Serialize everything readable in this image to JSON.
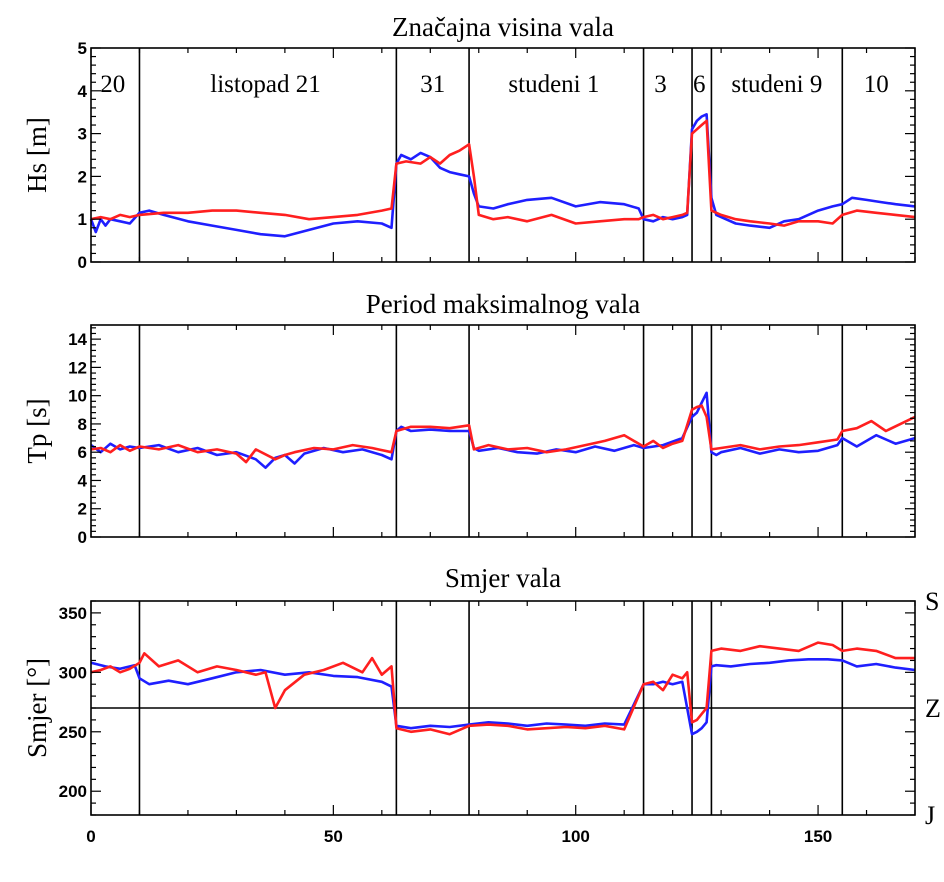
{
  "chart_data": [
    {
      "type": "line",
      "title": "Značajna visina vala",
      "ylabel": "Hs [m]",
      "xlim": [
        0,
        170
      ],
      "ylim": [
        0,
        5
      ],
      "yticks": [
        0,
        1,
        2,
        3,
        4,
        5
      ],
      "ytick_labels": [
        "0",
        "1",
        "2",
        "3",
        "4",
        "5"
      ],
      "day_boundaries_x": [
        10,
        63,
        78,
        114,
        124,
        128,
        155
      ],
      "segment_labels": [
        {
          "x": 4.5,
          "label": "20"
        },
        {
          "x": 36,
          "label": "listopad 21"
        },
        {
          "x": 70.5,
          "label": "31"
        },
        {
          "x": 95.5,
          "label": "studeni 1"
        },
        {
          "x": 117.5,
          "label": "3"
        },
        {
          "x": 125.5,
          "label": "6"
        },
        {
          "x": 141.5,
          "label": "studeni 9"
        },
        {
          "x": 162,
          "label": "10"
        }
      ],
      "series": [
        {
          "color": "#1f1fff",
          "x": [
            0,
            1,
            2,
            3,
            4,
            6,
            8,
            10,
            12,
            15,
            20,
            25,
            30,
            35,
            40,
            45,
            50,
            55,
            60,
            62,
            63,
            64,
            66,
            68,
            70,
            72,
            74,
            76,
            78,
            79,
            80,
            83,
            86,
            90,
            95,
            100,
            105,
            110,
            113,
            114,
            116,
            118,
            120,
            122,
            123,
            124,
            125,
            126,
            127,
            128,
            129,
            130,
            133,
            136,
            140,
            143,
            146,
            150,
            153,
            155,
            157,
            160,
            163,
            166,
            170
          ],
          "y": [
            1.0,
            0.7,
            1.0,
            0.85,
            1.0,
            0.95,
            0.9,
            1.15,
            1.2,
            1.1,
            0.95,
            0.85,
            0.75,
            0.65,
            0.6,
            0.75,
            0.9,
            0.95,
            0.9,
            0.8,
            2.3,
            2.5,
            2.4,
            2.55,
            2.45,
            2.2,
            2.1,
            2.05,
            2.0,
            1.6,
            1.3,
            1.25,
            1.35,
            1.45,
            1.5,
            1.3,
            1.4,
            1.35,
            1.25,
            1.0,
            0.95,
            1.05,
            1.0,
            1.05,
            1.1,
            3.1,
            3.3,
            3.4,
            3.45,
            1.5,
            1.1,
            1.05,
            0.9,
            0.85,
            0.8,
            0.95,
            1.0,
            1.2,
            1.3,
            1.35,
            1.5,
            1.45,
            1.4,
            1.35,
            1.3
          ]
        },
        {
          "color": "#ff1f1f",
          "x": [
            0,
            2,
            4,
            6,
            8,
            10,
            15,
            20,
            25,
            30,
            35,
            40,
            45,
            50,
            55,
            60,
            62,
            63,
            65,
            68,
            70,
            72,
            74,
            76,
            78,
            79,
            80,
            83,
            86,
            90,
            95,
            100,
            105,
            110,
            113,
            114,
            116,
            118,
            120,
            122,
            123,
            124,
            125,
            126,
            127,
            128,
            130,
            133,
            136,
            140,
            143,
            146,
            150,
            153,
            155,
            158,
            162,
            166,
            170
          ],
          "y": [
            1.0,
            1.05,
            1.0,
            1.1,
            1.05,
            1.1,
            1.15,
            1.15,
            1.2,
            1.2,
            1.15,
            1.1,
            1.0,
            1.05,
            1.1,
            1.2,
            1.25,
            2.3,
            2.35,
            2.3,
            2.45,
            2.3,
            2.5,
            2.6,
            2.75,
            2.0,
            1.1,
            1.0,
            1.05,
            0.95,
            1.1,
            0.9,
            0.95,
            1.0,
            1.0,
            1.05,
            1.1,
            1.0,
            1.05,
            1.1,
            1.15,
            3.0,
            3.1,
            3.2,
            3.3,
            1.2,
            1.1,
            1.0,
            0.95,
            0.9,
            0.85,
            0.95,
            0.95,
            0.9,
            1.1,
            1.2,
            1.15,
            1.1,
            1.05
          ]
        }
      ]
    },
    {
      "type": "line",
      "title": "Period maksimalnog vala",
      "ylabel": "Tp [s]",
      "xlim": [
        0,
        170
      ],
      "ylim": [
        0,
        15
      ],
      "yticks": [
        0,
        2,
        4,
        6,
        8,
        10,
        12,
        14
      ],
      "ytick_labels": [
        "0",
        "2",
        "4",
        "6",
        "8",
        "10",
        "12",
        "14"
      ],
      "day_boundaries_x": [
        10,
        63,
        78,
        114,
        124,
        128,
        155
      ],
      "series": [
        {
          "color": "#1f1fff",
          "x": [
            0,
            2,
            4,
            6,
            8,
            10,
            14,
            18,
            22,
            26,
            30,
            34,
            36,
            38,
            40,
            42,
            44,
            48,
            52,
            56,
            60,
            62,
            63,
            64,
            66,
            70,
            74,
            78,
            79,
            80,
            84,
            88,
            92,
            96,
            100,
            104,
            108,
            112,
            114,
            118,
            122,
            124,
            125,
            126,
            127,
            128,
            129,
            130,
            134,
            138,
            142,
            146,
            150,
            154,
            155,
            158,
            162,
            166,
            170
          ],
          "y": [
            6.5,
            6.0,
            6.6,
            6.2,
            6.4,
            6.3,
            6.5,
            6.0,
            6.3,
            5.8,
            6.0,
            5.5,
            4.9,
            5.6,
            5.8,
            5.2,
            5.9,
            6.3,
            6.0,
            6.2,
            5.8,
            5.5,
            7.5,
            7.8,
            7.5,
            7.6,
            7.5,
            7.5,
            6.3,
            6.1,
            6.3,
            6.0,
            5.9,
            6.2,
            6.0,
            6.4,
            6.1,
            6.5,
            6.3,
            6.5,
            7.0,
            8.5,
            8.8,
            9.5,
            10.2,
            6.0,
            5.8,
            6.0,
            6.3,
            5.9,
            6.2,
            6.0,
            6.1,
            6.5,
            7.0,
            6.4,
            7.2,
            6.6,
            7.0
          ]
        },
        {
          "color": "#ff1f1f",
          "x": [
            0,
            2,
            4,
            6,
            8,
            10,
            14,
            18,
            22,
            26,
            30,
            32,
            34,
            38,
            40,
            42,
            46,
            50,
            54,
            58,
            62,
            63,
            66,
            70,
            74,
            78,
            79,
            82,
            86,
            90,
            94,
            98,
            102,
            106,
            110,
            114,
            116,
            118,
            120,
            122,
            124,
            125,
            126,
            127,
            128,
            130,
            134,
            138,
            142,
            146,
            150,
            154,
            155,
            158,
            161,
            164,
            167,
            170
          ],
          "y": [
            6.2,
            6.3,
            6.0,
            6.5,
            6.1,
            6.4,
            6.2,
            6.5,
            6.0,
            6.2,
            5.9,
            5.3,
            6.2,
            5.5,
            5.8,
            6.0,
            6.3,
            6.2,
            6.5,
            6.3,
            6.0,
            7.5,
            7.8,
            7.8,
            7.7,
            7.9,
            6.2,
            6.5,
            6.2,
            6.3,
            6.0,
            6.2,
            6.5,
            6.8,
            7.2,
            6.4,
            6.8,
            6.3,
            6.6,
            6.8,
            9.0,
            9.2,
            9.3,
            8.5,
            6.2,
            6.3,
            6.5,
            6.2,
            6.4,
            6.5,
            6.7,
            6.9,
            7.5,
            7.7,
            8.2,
            7.5,
            8.0,
            8.5
          ]
        }
      ]
    },
    {
      "type": "line",
      "title": "Smjer vala",
      "ylabel": "Smjer [°]",
      "xlim": [
        0,
        170
      ],
      "ylim": [
        180,
        360
      ],
      "yticks": [
        200,
        250,
        300,
        350
      ],
      "ytick_labels": [
        "200",
        "250",
        "300",
        "350"
      ],
      "xticks": [
        0,
        50,
        100,
        150
      ],
      "xtick_labels": [
        "0",
        "50",
        "100",
        "150"
      ],
      "hline_y": 270,
      "right_labels": [
        {
          "y": 360,
          "label": "S"
        },
        {
          "y": 270,
          "label": "Z"
        },
        {
          "y": 180,
          "label": "J"
        }
      ],
      "day_boundaries_x": [
        10,
        63,
        78,
        114,
        124,
        128,
        155
      ],
      "series": [
        {
          "color": "#1f1fff",
          "x": [
            0,
            3,
            6,
            9,
            10,
            12,
            16,
            20,
            25,
            30,
            35,
            40,
            45,
            50,
            55,
            60,
            62,
            63,
            66,
            70,
            74,
            78,
            82,
            86,
            90,
            94,
            98,
            102,
            106,
            110,
            114,
            116,
            118,
            120,
            122,
            124,
            125,
            126,
            127,
            128,
            129,
            132,
            136,
            140,
            144,
            148,
            152,
            155,
            158,
            162,
            166,
            170
          ],
          "y": [
            308,
            305,
            303,
            306,
            295,
            290,
            293,
            290,
            295,
            300,
            302,
            298,
            300,
            297,
            296,
            292,
            288,
            255,
            253,
            255,
            254,
            256,
            258,
            257,
            255,
            257,
            256,
            255,
            257,
            256,
            290,
            290,
            292,
            290,
            292,
            248,
            250,
            253,
            258,
            305,
            306,
            305,
            307,
            308,
            310,
            311,
            311,
            310,
            305,
            307,
            304,
            302
          ]
        },
        {
          "color": "#ff1f1f",
          "x": [
            0,
            2,
            4,
            6,
            8,
            10,
            11,
            14,
            18,
            22,
            26,
            30,
            34,
            36,
            38,
            40,
            44,
            48,
            52,
            56,
            58,
            60,
            62,
            63,
            66,
            70,
            74,
            78,
            82,
            86,
            90,
            94,
            98,
            102,
            106,
            110,
            114,
            116,
            118,
            120,
            122,
            123,
            124,
            125,
            126,
            127,
            128,
            130,
            134,
            138,
            142,
            146,
            150,
            153,
            155,
            158,
            162,
            166,
            170
          ],
          "y": [
            300,
            302,
            305,
            300,
            303,
            308,
            316,
            305,
            310,
            300,
            305,
            302,
            298,
            300,
            270,
            285,
            298,
            302,
            308,
            300,
            312,
            298,
            305,
            253,
            250,
            252,
            248,
            255,
            256,
            255,
            252,
            253,
            254,
            253,
            255,
            252,
            290,
            292,
            285,
            298,
            295,
            300,
            258,
            260,
            265,
            270,
            318,
            320,
            318,
            322,
            320,
            318,
            325,
            323,
            318,
            320,
            318,
            312,
            312
          ]
        }
      ]
    }
  ]
}
